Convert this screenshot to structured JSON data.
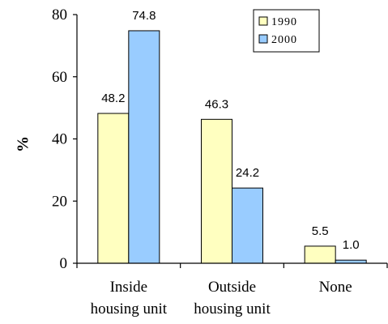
{
  "chart_data": {
    "type": "bar",
    "ylabel": "%",
    "xlabel": "",
    "title": "",
    "ylim": [
      0,
      80
    ],
    "yticks": [
      "0",
      "20",
      "40",
      "60",
      "80"
    ],
    "categories": [
      [
        "Inside",
        "housing unit"
      ],
      [
        "Outside",
        "housing unit"
      ],
      [
        "None"
      ]
    ],
    "series": [
      {
        "name": "1990",
        "color": "#ffffc0",
        "values": [
          48.2,
          46.3,
          5.5
        ],
        "labels": [
          "48.2",
          "46.3",
          "5.5"
        ]
      },
      {
        "name": "2000",
        "color": "#99ccff",
        "values": [
          74.8,
          24.2,
          1.0
        ],
        "labels": [
          "74.8",
          "24.2",
          "1.0"
        ]
      }
    ],
    "grid": false,
    "legend_position": "top-right"
  }
}
